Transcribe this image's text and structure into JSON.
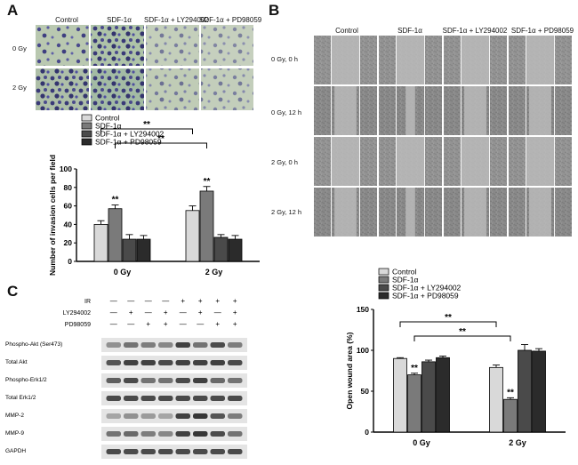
{
  "panels": {
    "A": {
      "letter": "A",
      "columns": [
        "Control",
        "SDF-1α",
        "SDF-1α + LY294002",
        "SDF-1α + PD98059"
      ],
      "rows": [
        "0 Gy",
        "2 Gy"
      ],
      "chart_data": {
        "type": "bar",
        "categories": [
          "0 Gy",
          "2 Gy"
        ],
        "ylabel": "Number of invasion cells per field",
        "ylim": [
          0,
          100
        ],
        "yticks": [
          0,
          20,
          40,
          60,
          80,
          100
        ],
        "legend_position": "top",
        "series": [
          {
            "name": "Control",
            "values": [
              40,
              55
            ],
            "errors": [
              4,
              5
            ],
            "fill": "#d9d9d9"
          },
          {
            "name": "SDF-1α",
            "values": [
              57,
              76
            ],
            "errors": [
              4,
              5
            ],
            "fill": "#7a7a7a"
          },
          {
            "name": "SDF-1α + LY294002",
            "values": [
              24,
              26
            ],
            "errors": [
              5,
              3
            ],
            "fill": "#4a4a4a"
          },
          {
            "name": "SDF-1α + PD98059",
            "values": [
              24,
              24
            ],
            "errors": [
              4,
              4
            ],
            "fill": "#2b2b2b"
          }
        ],
        "significance": "**",
        "brackets": [
          {
            "from": "0 Gy Control",
            "to": "2 Gy Control",
            "label": "**"
          },
          {
            "from": "0 Gy SDF-1α",
            "to": "2 Gy SDF-1α",
            "label": "**"
          }
        ]
      }
    },
    "B": {
      "letter": "B",
      "columns": [
        "Control",
        "SDF-1α",
        "SDF-1α + LY294002",
        "SDF-1α + PD98059"
      ],
      "rows": [
        "0 Gy,   0 h",
        "0 Gy,   12 h",
        "2 Gy,   0 h",
        "2 Gy,   12 h"
      ],
      "chart_data": {
        "type": "bar",
        "categories": [
          "0 Gy",
          "2 Gy"
        ],
        "ylabel": "Open wound area (%)",
        "ylim": [
          0,
          150
        ],
        "yticks": [
          0,
          50,
          100,
          150
        ],
        "legend_position": "top",
        "series": [
          {
            "name": "Control",
            "values": [
              90,
              79
            ],
            "errors": [
              1,
              3
            ],
            "fill": "#d9d9d9"
          },
          {
            "name": "SDF-1α",
            "values": [
              70,
              40
            ],
            "errors": [
              2,
              2
            ],
            "fill": "#7a7a7a"
          },
          {
            "name": "SDF-1α + LY294002",
            "values": [
              86,
              100
            ],
            "errors": [
              2,
              7
            ],
            "fill": "#4a4a4a"
          },
          {
            "name": "SDF-1α + PD98059",
            "values": [
              91,
              99
            ],
            "errors": [
              2,
              3
            ],
            "fill": "#2b2b2b"
          }
        ],
        "significance": "**",
        "brackets": [
          {
            "from": "0 Gy Control",
            "to": "2 Gy Control",
            "label": "**"
          },
          {
            "from": "0 Gy SDF-1α",
            "to": "2 Gy SDF-1α",
            "label": "**"
          }
        ]
      }
    },
    "C": {
      "letter": "C",
      "treatments": [
        {
          "name": "IR",
          "signs": [
            "—",
            "—",
            "—",
            "—",
            "+",
            "+",
            "+",
            "+"
          ]
        },
        {
          "name": "LY294002",
          "signs": [
            "—",
            "+",
            "—",
            "+",
            "—",
            "+",
            "—",
            "+"
          ]
        },
        {
          "name": "PD98059",
          "signs": [
            "—",
            "—",
            "+",
            "+",
            "—",
            "—",
            "+",
            "+"
          ]
        }
      ],
      "blots": [
        {
          "name": "Phospho-Akt (Ser473)",
          "levels": [
            0.45,
            0.6,
            0.55,
            0.5,
            0.85,
            0.6,
            0.8,
            0.55
          ]
        },
        {
          "name": "Total Akt",
          "levels": [
            0.75,
            0.85,
            0.85,
            0.8,
            0.85,
            0.85,
            0.85,
            0.8
          ]
        },
        {
          "name": "Phospho-Erk1/2",
          "levels": [
            0.7,
            0.8,
            0.6,
            0.6,
            0.8,
            0.85,
            0.65,
            0.6
          ]
        },
        {
          "name": "Total Erk1/2",
          "levels": [
            0.8,
            0.8,
            0.8,
            0.8,
            0.8,
            0.8,
            0.8,
            0.8
          ]
        },
        {
          "name": "MMP-2",
          "levels": [
            0.35,
            0.45,
            0.4,
            0.35,
            0.85,
            0.9,
            0.75,
            0.55
          ]
        },
        {
          "name": "MMP-9",
          "levels": [
            0.6,
            0.65,
            0.55,
            0.5,
            0.85,
            0.9,
            0.8,
            0.6
          ]
        },
        {
          "name": "GAPDH",
          "levels": [
            0.8,
            0.8,
            0.8,
            0.8,
            0.8,
            0.8,
            0.8,
            0.8
          ]
        }
      ]
    }
  }
}
